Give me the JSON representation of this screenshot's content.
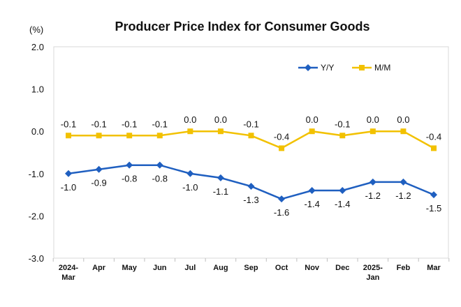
{
  "chart_data": {
    "type": "line",
    "title": "Producer Price Index for Consumer Goods",
    "ylabel": "(%)",
    "ylim": [
      -3.0,
      2.0
    ],
    "yticks": [
      "2.0",
      "1.0",
      "0.0",
      "-1.0",
      "-2.0",
      "-3.0"
    ],
    "ytick_values": [
      2.0,
      1.0,
      0.0,
      -1.0,
      -2.0,
      -3.0
    ],
    "categories": [
      [
        "2024-",
        "Mar"
      ],
      [
        "Apr"
      ],
      [
        "May"
      ],
      [
        "Jun"
      ],
      [
        "Jul"
      ],
      [
        "Aug"
      ],
      [
        "Sep"
      ],
      [
        "Oct"
      ],
      [
        "Nov"
      ],
      [
        "Dec"
      ],
      [
        "2025-",
        "Jan"
      ],
      [
        "Feb"
      ],
      [
        "Mar"
      ]
    ],
    "legend_position": "top-right",
    "grid": false,
    "series": [
      {
        "name": "Y/Y",
        "color": "#1F5FC0",
        "marker": "diamond",
        "values": [
          -1.0,
          -0.9,
          -0.8,
          -0.8,
          -1.0,
          -1.1,
          -1.3,
          -1.6,
          -1.4,
          -1.4,
          -1.2,
          -1.2,
          -1.5
        ],
        "labels": [
          "-1.0",
          "-0.9",
          "-0.8",
          "-0.8",
          "-1.0",
          "-1.1",
          "-1.3",
          "-1.6",
          "-1.4",
          "-1.4",
          "-1.2",
          "-1.2",
          "-1.5"
        ]
      },
      {
        "name": "M/M",
        "color": "#F2C100",
        "marker": "square",
        "values": [
          -0.1,
          -0.1,
          -0.1,
          -0.1,
          0.0,
          0.0,
          -0.1,
          -0.4,
          0.0,
          -0.1,
          0.0,
          0.0,
          -0.4
        ],
        "labels": [
          "-0.1",
          "-0.1",
          "-0.1",
          "-0.1",
          "0.0",
          "0.0",
          "-0.1",
          "-0.4",
          "0.0",
          "-0.1",
          "0.0",
          "0.0",
          "-0.4"
        ]
      }
    ]
  }
}
